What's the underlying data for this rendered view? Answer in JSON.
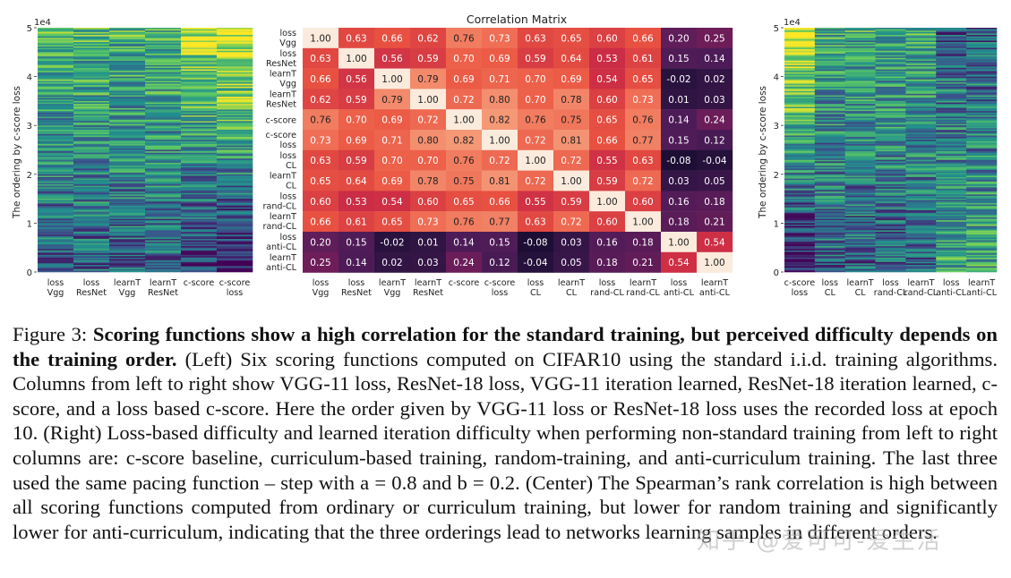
{
  "figure": {
    "left_panel": {
      "exponent": "1e4",
      "yticks": [
        "0",
        "1",
        "2",
        "3",
        "4",
        "5"
      ],
      "ylabel": "The ordering by c-score loss",
      "columns": [
        [
          "loss",
          "Vgg"
        ],
        [
          "loss",
          "ResNet"
        ],
        [
          "learnT",
          "Vgg"
        ],
        [
          "learnT",
          "ResNet"
        ],
        [
          "c-score",
          ""
        ],
        [
          "c-score",
          "loss"
        ]
      ]
    },
    "right_panel": {
      "exponent": "1e4",
      "yticks": [
        "0",
        "1",
        "2",
        "3",
        "4",
        "5"
      ],
      "ylabel": "The ordering by c-score loss",
      "columns": [
        [
          "c-score",
          "loss"
        ],
        [
          "loss",
          "CL"
        ],
        [
          "learnT",
          "CL"
        ],
        [
          "loss",
          "rand-CL"
        ],
        [
          "learnT",
          "rand-CL"
        ],
        [
          "loss",
          "anti-CL"
        ],
        [
          "learnT",
          "anti-CL"
        ]
      ]
    },
    "chart_data": {
      "type": "heatmap",
      "title": "Correlation Matrix",
      "row_labels": [
        [
          "loss",
          "Vgg"
        ],
        [
          "loss",
          "ResNet"
        ],
        [
          "learnT",
          "Vgg"
        ],
        [
          "learnT",
          "ResNet"
        ],
        [
          "c-score",
          ""
        ],
        [
          "c-score",
          "loss"
        ],
        [
          "loss",
          "CL"
        ],
        [
          "learnT",
          "CL"
        ],
        [
          "loss",
          "rand-CL"
        ],
        [
          "learnT",
          "rand-CL"
        ],
        [
          "loss",
          "anti-CL"
        ],
        [
          "learnT",
          "anti-CL"
        ]
      ],
      "col_labels": [
        [
          "loss",
          "Vgg"
        ],
        [
          "loss",
          "ResNet"
        ],
        [
          "learnT",
          "Vgg"
        ],
        [
          "learnT",
          "ResNet"
        ],
        [
          "c-score",
          ""
        ],
        [
          "c-score",
          "loss"
        ],
        [
          "loss",
          "CL"
        ],
        [
          "learnT",
          "CL"
        ],
        [
          "loss",
          "rand-CL"
        ],
        [
          "learnT",
          "rand-CL"
        ],
        [
          "loss",
          "anti-CL"
        ],
        [
          "learnT",
          "anti-CL"
        ]
      ],
      "values": [
        [
          1.0,
          0.63,
          0.66,
          0.62,
          0.76,
          0.73,
          0.63,
          0.65,
          0.6,
          0.66,
          0.2,
          0.25
        ],
        [
          0.63,
          1.0,
          0.56,
          0.59,
          0.7,
          0.69,
          0.59,
          0.64,
          0.53,
          0.61,
          0.15,
          0.14
        ],
        [
          0.66,
          0.56,
          1.0,
          0.79,
          0.69,
          0.71,
          0.7,
          0.69,
          0.54,
          0.65,
          -0.02,
          0.02
        ],
        [
          0.62,
          0.59,
          0.79,
          1.0,
          0.72,
          0.8,
          0.7,
          0.78,
          0.6,
          0.73,
          0.01,
          0.03
        ],
        [
          0.76,
          0.7,
          0.69,
          0.72,
          1.0,
          0.82,
          0.76,
          0.75,
          0.65,
          0.76,
          0.14,
          0.24
        ],
        [
          0.73,
          0.69,
          0.71,
          0.8,
          0.82,
          1.0,
          0.72,
          0.81,
          0.66,
          0.77,
          0.15,
          0.12
        ],
        [
          0.63,
          0.59,
          0.7,
          0.7,
          0.76,
          0.72,
          1.0,
          0.72,
          0.55,
          0.63,
          -0.08,
          -0.04
        ],
        [
          0.65,
          0.64,
          0.69,
          0.78,
          0.75,
          0.81,
          0.72,
          1.0,
          0.59,
          0.72,
          0.03,
          0.05
        ],
        [
          0.6,
          0.53,
          0.54,
          0.6,
          0.65,
          0.66,
          0.55,
          0.59,
          1.0,
          0.6,
          0.16,
          0.18
        ],
        [
          0.66,
          0.61,
          0.65,
          0.73,
          0.76,
          0.77,
          0.63,
          0.72,
          0.6,
          1.0,
          0.18,
          0.21
        ],
        [
          0.2,
          0.15,
          -0.02,
          0.01,
          0.14,
          0.15,
          -0.08,
          0.03,
          0.16,
          0.18,
          1.0,
          0.54
        ],
        [
          0.25,
          0.14,
          0.02,
          0.03,
          0.24,
          0.12,
          -0.04,
          0.05,
          0.18,
          0.21,
          0.54,
          1.0
        ]
      ]
    }
  },
  "caption": {
    "figure_label": "Figure 3:",
    "bold_title": "Scoring functions show a high correlation for the standard training, but perceived difficulty depends on the training order.",
    "body": "(Left) Six scoring functions computed on CIFAR10 using the standard i.i.d. training algorithms. Columns from left to right show VGG-11 loss, ResNet-18 loss, VGG-11 iteration learned, ResNet-18 iteration learned, c-score, and a loss based c-score. Here the order given by VGG-11 loss or ResNet-18 loss uses the recorded loss at epoch 10. (Right) Loss-based difficulty and learned iteration difficulty when performing non-standard training from left to right columns are: c-score baseline, curriculum-based training, random-training, and anti-curriculum training. The last three used the same pacing function – step with a = 0.8 and b = 0.2. (Center) The Spearman’s rank correlation is high between all scoring functions computed from ordinary or curriculum training, but lower for random training and significantly lower for anti-curriculum, indicating that the three orderings lead to networks learning samples in different orders."
  },
  "watermark": "知乎 @爱可可-爱生活"
}
